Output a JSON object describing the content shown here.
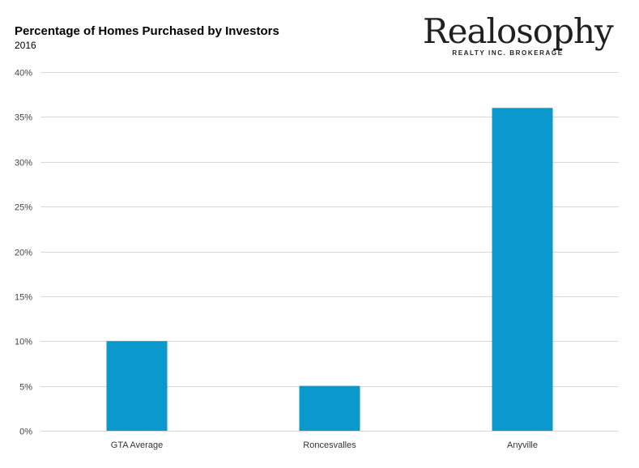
{
  "chart_data": {
    "type": "bar",
    "title": "Percentage of Homes Purchased by Investors",
    "subtitle": "2016",
    "xlabel": "",
    "ylabel": "",
    "categories": [
      "GTA Average",
      "Roncesvalles",
      "Anyville"
    ],
    "values": [
      10,
      5,
      36
    ],
    "ylim": [
      0,
      40
    ],
    "yticks": [
      "0%",
      "5%",
      "10%",
      "15%",
      "20%",
      "25%",
      "30%",
      "35%",
      "40%"
    ],
    "ytick_values": [
      0,
      5,
      10,
      15,
      20,
      25,
      30,
      35,
      40
    ],
    "grid": true,
    "legend": "none",
    "bar_color": "#0b98cd",
    "grid_color": "#d9d9d9"
  },
  "logo": {
    "name": "Realosophy",
    "tagline": "REALTY INC. BROKERAGE"
  }
}
